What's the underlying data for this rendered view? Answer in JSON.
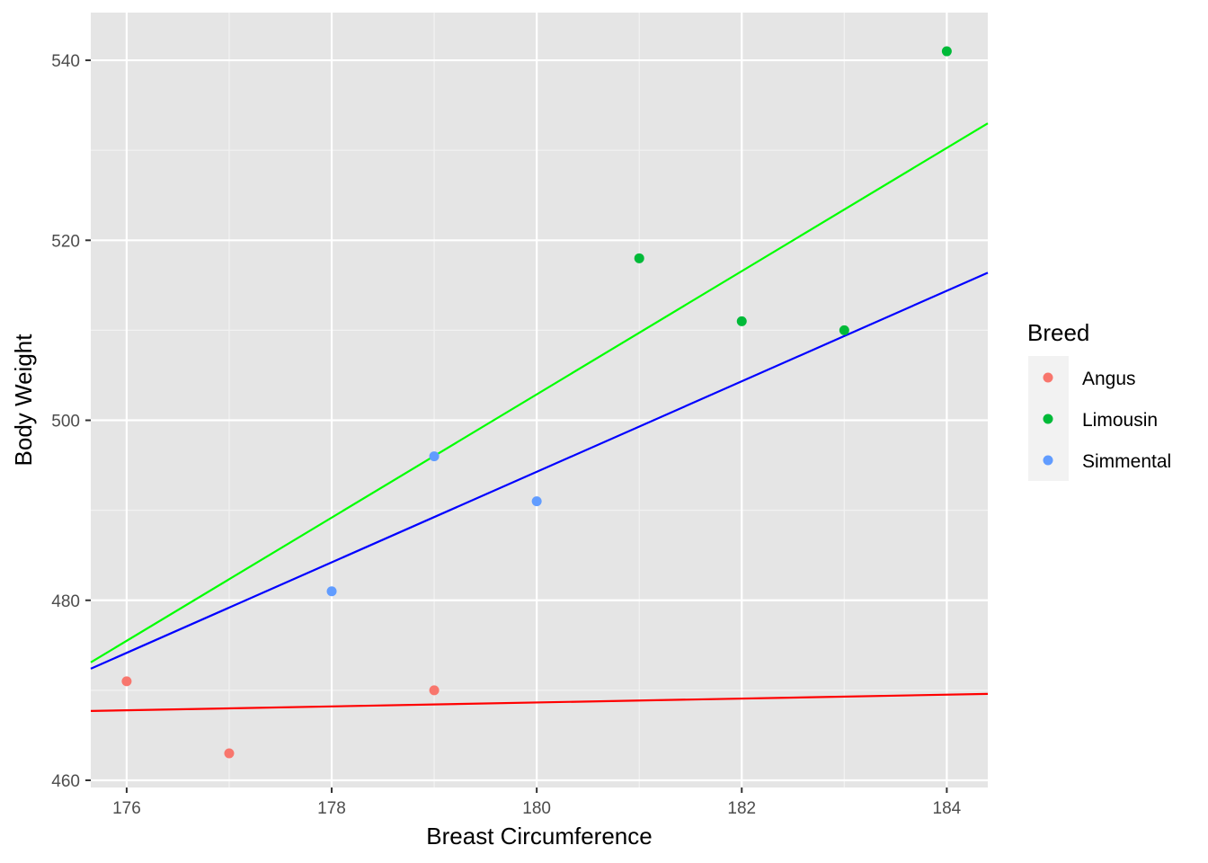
{
  "chart_data": {
    "type": "scatter",
    "title": "",
    "xlabel": "Breast Circumference",
    "ylabel": "Body Weight",
    "xlim": [
      175.65,
      184.4
    ],
    "ylim": [
      459.2,
      545.3
    ],
    "x_ticks": [
      176,
      178,
      180,
      182,
      184
    ],
    "y_ticks": [
      460,
      480,
      500,
      520,
      540
    ],
    "x_minor": [
      177,
      179,
      181,
      183
    ],
    "y_minor": [
      470,
      490,
      510,
      530
    ],
    "grid": true,
    "legend": {
      "title": "Breed",
      "placement": "right",
      "entries": [
        "Angus",
        "Limousin",
        "Simmental"
      ]
    },
    "series": [
      {
        "name": "Angus",
        "color": "#F8766D",
        "points": [
          {
            "x": 176,
            "y": 471
          },
          {
            "x": 177,
            "y": 463
          },
          {
            "x": 179,
            "y": 470
          }
        ]
      },
      {
        "name": "Limousin",
        "color": "#00BA38",
        "points": [
          {
            "x": 181,
            "y": 518
          },
          {
            "x": 182,
            "y": 511
          },
          {
            "x": 183,
            "y": 510
          },
          {
            "x": 184,
            "y": 541
          }
        ]
      },
      {
        "name": "Simmental",
        "color": "#619CFF",
        "points": [
          {
            "x": 178,
            "y": 481
          },
          {
            "x": 179,
            "y": 496
          },
          {
            "x": 180,
            "y": 491
          }
        ]
      }
    ],
    "lines": [
      {
        "name": "Angus fit",
        "color": "#FF0000",
        "x": [
          175.65,
          184.4
        ],
        "y": [
          467.7,
          469.6
        ]
      },
      {
        "name": "Limousin fit",
        "color": "#00FF00",
        "x": [
          175.65,
          184.4
        ],
        "y": [
          473.1,
          533.0
        ]
      },
      {
        "name": "Simmental fit",
        "color": "#0000FF",
        "x": [
          175.65,
          184.4
        ],
        "y": [
          472.4,
          516.4
        ]
      }
    ]
  }
}
